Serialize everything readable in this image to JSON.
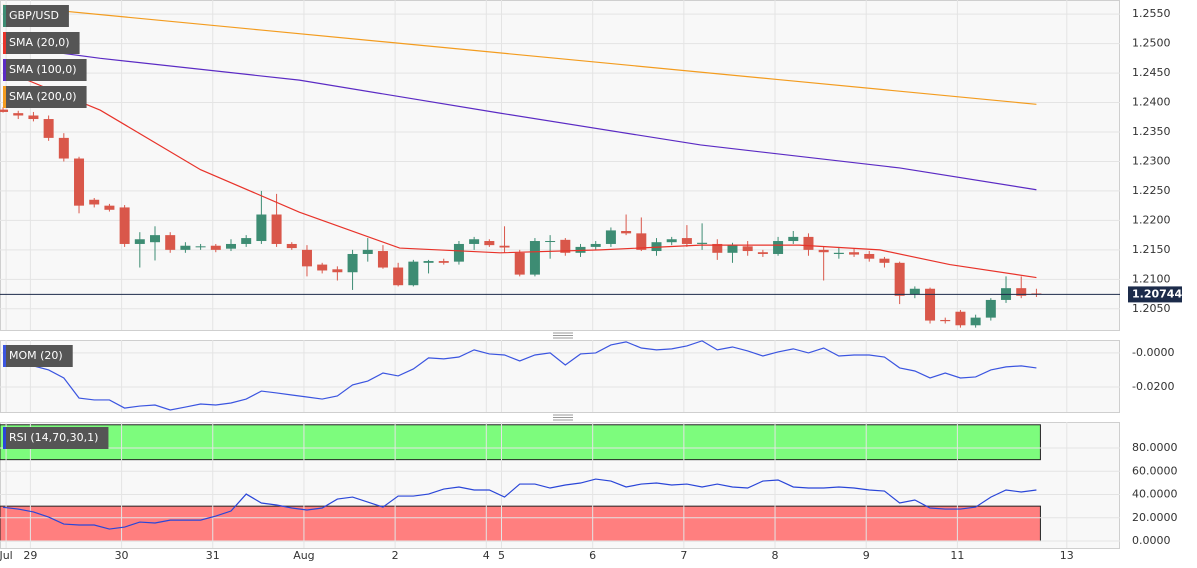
{
  "chart_data": [
    {
      "type": "candlestick",
      "name": "GBP/USD",
      "color": "#3d8c73",
      "up_color": "#3d8c73",
      "down_color": "#d9574a",
      "ohlc": [
        [
          1.2388,
          1.2392,
          1.2383,
          1.2384
        ],
        [
          1.2382,
          1.2386,
          1.2372,
          1.2378
        ],
        [
          1.2378,
          1.2384,
          1.2368,
          1.2372
        ],
        [
          1.2372,
          1.2378,
          1.2335,
          1.234
        ],
        [
          1.234,
          1.2348,
          1.23,
          1.2305
        ],
        [
          1.2305,
          1.2308,
          1.2212,
          1.2225
        ],
        [
          1.2235,
          1.2238,
          1.2222,
          1.2227
        ],
        [
          1.2225,
          1.2228,
          1.2215,
          1.2218
        ],
        [
          1.2222,
          1.2226,
          1.2155,
          1.216
        ],
        [
          1.216,
          1.218,
          1.212,
          1.2168
        ],
        [
          1.2163,
          1.219,
          1.2132,
          1.2175
        ],
        [
          1.2175,
          1.218,
          1.2145,
          1.215
        ],
        [
          1.215,
          1.2163,
          1.2145,
          1.2157
        ],
        [
          1.2155,
          1.216,
          1.215,
          1.2156
        ],
        [
          1.2157,
          1.216,
          1.2146,
          1.215
        ],
        [
          1.2152,
          1.2168,
          1.2148,
          1.216
        ],
        [
          1.216,
          1.2175,
          1.2155,
          1.217
        ],
        [
          1.2165,
          1.225,
          1.216,
          1.221
        ],
        [
          1.221,
          1.2245,
          1.2155,
          1.216
        ],
        [
          1.216,
          1.2163,
          1.215,
          1.2153
        ],
        [
          1.215,
          1.2158,
          1.2105,
          1.2122
        ],
        [
          1.2125,
          1.2128,
          1.211,
          1.2115
        ],
        [
          1.2117,
          1.2122,
          1.2098,
          1.2112
        ],
        [
          1.2112,
          1.215,
          1.2082,
          1.2143
        ],
        [
          1.2143,
          1.217,
          1.213,
          1.215
        ],
        [
          1.2148,
          1.2158,
          1.2118,
          1.212
        ],
        [
          1.212,
          1.2128,
          1.2088,
          1.209
        ],
        [
          1.209,
          1.2133,
          1.2088,
          1.213
        ],
        [
          1.2128,
          1.2133,
          1.211,
          1.2131
        ],
        [
          1.2131,
          1.2135,
          1.2125,
          1.2128
        ],
        [
          1.213,
          1.2165,
          1.2125,
          1.216
        ],
        [
          1.216,
          1.2172,
          1.215,
          1.2168
        ],
        [
          1.2165,
          1.2168,
          1.2155,
          1.2158
        ],
        [
          1.2157,
          1.219,
          1.2145,
          1.2154
        ],
        [
          1.2145,
          1.215,
          1.2105,
          1.2108
        ],
        [
          1.2108,
          1.217,
          1.2105,
          1.2165
        ],
        [
          1.2165,
          1.2175,
          1.2135,
          1.2165
        ],
        [
          1.2167,
          1.217,
          1.214,
          1.2145
        ],
        [
          1.2145,
          1.216,
          1.2138,
          1.2155
        ],
        [
          1.2155,
          1.2165,
          1.215,
          1.216
        ],
        [
          1.216,
          1.2188,
          1.2155,
          1.2183
        ],
        [
          1.2182,
          1.221,
          1.2175,
          1.2178
        ],
        [
          1.2178,
          1.2205,
          1.2148,
          1.215
        ],
        [
          1.2148,
          1.217,
          1.214,
          1.2163
        ],
        [
          1.2163,
          1.2172,
          1.2158,
          1.2168
        ],
        [
          1.217,
          1.2192,
          1.2155,
          1.216
        ],
        [
          1.216,
          1.2195,
          1.215,
          1.2162
        ],
        [
          1.216,
          1.2168,
          1.2133,
          1.2145
        ],
        [
          1.2145,
          1.2162,
          1.2128,
          1.2158
        ],
        [
          1.2156,
          1.2165,
          1.214,
          1.2148
        ],
        [
          1.2146,
          1.215,
          1.2138,
          1.2143
        ],
        [
          1.2143,
          1.2172,
          1.214,
          1.2165
        ],
        [
          1.2165,
          1.2182,
          1.216,
          1.2172
        ],
        [
          1.2172,
          1.2178,
          1.214,
          1.215
        ],
        [
          1.215,
          1.2155,
          1.2098,
          1.2146
        ],
        [
          1.2143,
          1.2155,
          1.2135,
          1.2145
        ],
        [
          1.2146,
          1.2153,
          1.2138,
          1.2142
        ],
        [
          1.2143,
          1.2148,
          1.213,
          1.2135
        ],
        [
          1.2135,
          1.2138,
          1.212,
          1.2128
        ],
        [
          1.2128,
          1.213,
          1.2058,
          1.2072
        ],
        [
          1.2075,
          1.2088,
          1.2068,
          1.2084
        ],
        [
          1.2084,
          1.2086,
          1.2025,
          1.203
        ],
        [
          1.2031,
          1.2035,
          1.2025,
          1.2029
        ],
        [
          1.2045,
          1.2048,
          1.2018,
          1.2022
        ],
        [
          1.2022,
          1.204,
          1.2018,
          1.2035
        ],
        [
          1.2035,
          1.2068,
          1.203,
          1.2065
        ],
        [
          1.2065,
          1.2105,
          1.206,
          1.2085
        ],
        [
          1.2085,
          1.2105,
          1.2068,
          1.2072
        ],
        [
          1.2076,
          1.2084,
          1.207,
          1.20744
        ]
      ],
      "series": [
        {
          "name": "SMA (20,0)",
          "color": "#e8332a",
          "x": [
            0,
            6.4,
            13,
            19.5,
            26.1,
            32.7,
            39.3,
            45.9,
            52.4,
            57.7,
            62.3,
            68
          ],
          "values": [
            1.2455,
            1.2387,
            1.2286,
            1.2214,
            1.2153,
            1.2145,
            1.215,
            1.2158,
            1.2158,
            1.215,
            1.2125,
            1.2103
          ]
        },
        {
          "name": "SMA (100,0)",
          "color": "#5b2bc4",
          "x": [
            0,
            6.4,
            19.5,
            32.7,
            45.9,
            59,
            68
          ],
          "values": [
            1.2497,
            1.2475,
            1.2438,
            1.2382,
            1.2328,
            1.2289,
            1.2252
          ]
        },
        {
          "name": "SMA (200,0)",
          "color": "#f39c1f",
          "x": [
            0,
            17,
            34,
            51,
            68
          ],
          "values": [
            1.2565,
            1.2523,
            1.2481,
            1.2439,
            1.2397
          ]
        }
      ],
      "last_price": 1.20744,
      "xlim": [
        -0.2,
        73.5
      ],
      "ylim": [
        1.2014,
        1.2574
      ],
      "yticks": [
        {
          "value": 1.205,
          "label": "1.2050"
        },
        {
          "value": 1.21,
          "label": "1.2100"
        },
        {
          "value": 1.215,
          "label": "1.2150"
        },
        {
          "value": 1.22,
          "label": "1.2200"
        },
        {
          "value": 1.225,
          "label": "1.2250"
        },
        {
          "value": 1.23,
          "label": "1.2300"
        },
        {
          "value": 1.235,
          "label": "1.2350"
        },
        {
          "value": 1.24,
          "label": "1.2400"
        },
        {
          "value": 1.245,
          "label": "1.2450"
        },
        {
          "value": 1.25,
          "label": "1.2500"
        },
        {
          "value": 1.255,
          "label": "1.2550"
        }
      ],
      "grid": true
    },
    {
      "type": "line",
      "series": [
        {
          "name": "MOM (20)",
          "color": "#3b55e0",
          "values": [
            -0.0071,
            -0.0071,
            -0.0076,
            -0.01,
            -0.0147,
            -0.0265,
            -0.0276,
            -0.0276,
            -0.0324,
            -0.0312,
            -0.0306,
            -0.0335,
            -0.0318,
            -0.03,
            -0.0306,
            -0.0294,
            -0.0271,
            -0.0224,
            -0.0235,
            -0.0247,
            -0.0259,
            -0.0271,
            -0.0253,
            -0.0188,
            -0.0165,
            -0.0118,
            -0.0135,
            -0.0094,
            -0.0029,
            -0.0035,
            -0.0024,
            0.0018,
            -0.0006,
            -0.0012,
            -0.0047,
            -0.0012,
            0,
            -0.0071,
            -0.0006,
            0,
            0.0047,
            0.0065,
            0.0029,
            0.0018,
            0.0024,
            0.0041,
            0.0071,
            0.0018,
            0.0035,
            0.0012,
            -0.0018,
            0.0006,
            0.0024,
            0,
            0.0029,
            -0.0018,
            -0.0012,
            -0.0012,
            -0.0024,
            -0.0088,
            -0.0106,
            -0.0147,
            -0.0118,
            -0.0147,
            -0.0141,
            -0.01,
            -0.0082,
            -0.0076,
            -0.0088
          ]
        }
      ],
      "xlim": [
        -0.2,
        73.5
      ],
      "ylim": [
        -0.0347,
        0.0076
      ],
      "yticks": [
        {
          "value": 0,
          "label": "-0.0000"
        },
        {
          "value": -0.02,
          "label": "-0.0200"
        }
      ],
      "grid": true
    },
    {
      "type": "line",
      "series": [
        {
          "name": "RSI (14,70,30,1)",
          "color": "#2a46d8",
          "values": [
            29,
            27.5,
            25,
            20.6,
            14.6,
            13.8,
            13.8,
            10.3,
            12,
            16.3,
            15.5,
            18,
            18,
            18,
            21.5,
            25.8,
            40.4,
            32.7,
            31,
            28.4,
            26.7,
            28.4,
            36.1,
            37.8,
            33.5,
            29.2,
            38.7,
            38.7,
            40.4,
            44.7,
            46.5,
            43.9,
            43.9,
            37.8,
            49,
            49,
            45.6,
            48.2,
            49.9,
            53.3,
            51.6,
            46.5,
            49,
            49.9,
            48.2,
            49,
            46.5,
            49,
            46.5,
            45.6,
            51.6,
            52.5,
            46.5,
            45.6,
            45.6,
            46.5,
            45.6,
            43.9,
            43,
            32.7,
            35.3,
            28.4,
            27.5,
            27.5,
            29.2,
            37.8,
            43.9,
            42.2,
            43.9
          ]
        }
      ],
      "bands": [
        {
          "range": [
            70,
            100
          ],
          "color": "#7dfc7d"
        },
        {
          "range": [
            0,
            30
          ],
          "color": "#ff7f7f"
        }
      ],
      "xlim": [
        -0.2,
        73.5
      ],
      "ylim": [
        -6,
        102.4
      ],
      "yticks": [
        {
          "value": 0,
          "label": "0.0000"
        },
        {
          "value": 20,
          "label": "20.0000"
        },
        {
          "value": 40,
          "label": "40.0000"
        },
        {
          "value": 60,
          "label": "60.0000"
        },
        {
          "value": 80,
          "label": "80.0000"
        }
      ],
      "xticks": [
        {
          "value": 0.2,
          "label": "Jul"
        },
        {
          "value": 1.8,
          "label": "29"
        },
        {
          "value": 7.8,
          "label": "30"
        },
        {
          "value": 13.8,
          "label": "31"
        },
        {
          "value": 19.8,
          "label": "Aug"
        },
        {
          "value": 25.8,
          "label": "2"
        },
        {
          "value": 31.8,
          "label": "4"
        },
        {
          "value": 32.8,
          "label": "5"
        },
        {
          "value": 38.8,
          "label": "6"
        },
        {
          "value": 44.8,
          "label": "7"
        },
        {
          "value": 50.8,
          "label": "8"
        },
        {
          "value": 56.8,
          "label": "9"
        },
        {
          "value": 62.8,
          "label": "11"
        },
        {
          "value": 70,
          "label": "13"
        }
      ],
      "grid": true
    }
  ]
}
